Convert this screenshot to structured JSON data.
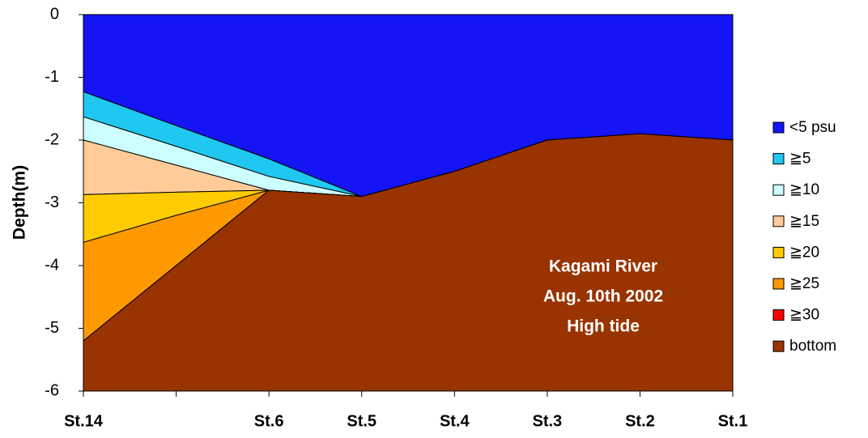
{
  "chart_data": {
    "type": "area",
    "stacked": true,
    "y_label": "Depth(m)",
    "annotations": [
      "Kagami River",
      "Aug. 10th  2002",
      "High tide"
    ],
    "categories": [
      "St.14",
      null,
      "St.6",
      "St.5",
      "St.4",
      "St.3",
      "St.2",
      "St.1"
    ],
    "ylim": [
      -6,
      0
    ],
    "yticks": [
      0,
      -1,
      -2,
      -3,
      -4,
      -5,
      -6
    ],
    "series": [
      {
        "name": "<5 psu",
        "color": "#1414f5",
        "values": [
          -1.23,
          -1.77,
          -2.3,
          -2.9,
          -2.5,
          -2.0,
          -1.9,
          -2.0
        ]
      },
      {
        "name": "≧5",
        "color": "#1ec8f0",
        "values": [
          -0.4,
          -0.33,
          -0.28,
          0,
          0,
          0,
          0,
          0
        ]
      },
      {
        "name": "≧10",
        "color": "#ccffff",
        "values": [
          -0.37,
          -0.3,
          -0.22,
          0,
          0,
          0,
          0,
          0
        ]
      },
      {
        "name": "≧15",
        "color": "#ffcc99",
        "values": [
          -0.87,
          -0.43,
          0,
          0,
          0,
          0,
          0,
          0
        ]
      },
      {
        "name": "≧20",
        "color": "#ffcc00",
        "values": [
          -0.76,
          -0.37,
          0,
          0,
          0,
          0,
          0,
          0
        ]
      },
      {
        "name": "≧25",
        "color": "#ff9900",
        "values": [
          -1.57,
          -0.8,
          0,
          0,
          0,
          0,
          0,
          0
        ]
      },
      {
        "name": "≧30",
        "color": "#ff0000",
        "values": [
          0,
          0,
          0,
          0,
          0,
          0,
          0,
          0
        ]
      },
      {
        "name": "bottom",
        "color": "#993300",
        "values": [
          -0.8,
          -2.0,
          -3.2,
          -3.1,
          -3.5,
          -4.0,
          -4.1,
          -4.0
        ]
      }
    ]
  }
}
